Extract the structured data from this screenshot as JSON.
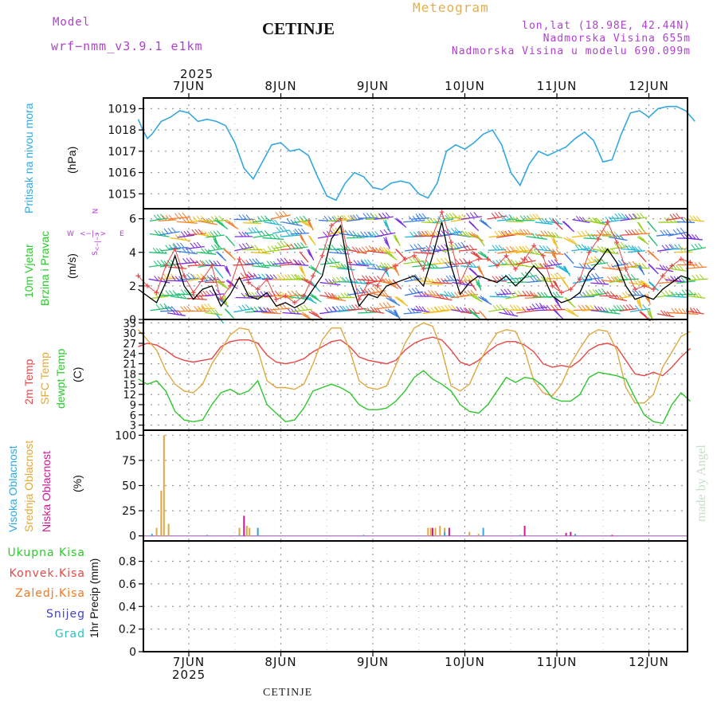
{
  "header": {
    "model_label": "Model",
    "model_name": "wrf−nmm_v3.9.1  e1km",
    "station": "CETINJE",
    "product": "Meteogram",
    "coords": "lon,lat (18.98E, 42.44N)",
    "elevation": "Nadmorska Visina 655m",
    "model_elevation": "Nadmorska Visina u modelu 690.099m",
    "footer_station": "CETINJE",
    "watermark": "made by Angel"
  },
  "colors": {
    "pressure": "#33a8e0",
    "temp2m": "#e54848",
    "sfc_temp": "#e0a840",
    "dewpt": "#2ec82e",
    "wind_speed": "#000000",
    "gust": "#e54848",
    "high_cloud": "#33a8e0",
    "mid_cloud": "#e0a840",
    "low_cloud": "#d01890",
    "total_precip": "#2ec82e",
    "convective": "#e54848",
    "freezing": "#f07820",
    "snow": "#4040d0",
    "hail": "#30c0c0",
    "header_purple": "#b040d0",
    "header_orange": "#e0b050"
  },
  "x_axis": {
    "year": "2025",
    "days": [
      "7JUN",
      "8JUN",
      "9JUN",
      "10JUN",
      "11JUN",
      "12JUN"
    ]
  },
  "panels": {
    "pressure": {
      "label": "Pritisak na nivou mora",
      "unit": "(hPa)",
      "ticks": [
        "1015",
        "1016",
        "1017",
        "1018",
        "1019"
      ]
    },
    "wind": {
      "label1": "10m Vjetar",
      "label2": "Brzina i Pravac",
      "unit": "(m/s)",
      "ticks": [
        "0",
        "2",
        "4",
        "6"
      ],
      "compass_n": "N",
      "compass_s": "S",
      "compass_w": "W",
      "compass_e": "E",
      "compass_arrows": "<−|−>"
    },
    "temp": {
      "label1": "2m Temp",
      "label2": "SFC Temp",
      "label3": "dewpt Temp",
      "unit": "(C)",
      "ticks": [
        "3",
        "6",
        "9",
        "12",
        "15",
        "18",
        "21",
        "24",
        "27",
        "30",
        "33"
      ]
    },
    "cloud": {
      "label1": "Visoka Oblacnost",
      "label2": "Srednja Oblacnost",
      "label3": "Niska Oblacnost",
      "unit": "(%)",
      "ticks": [
        "0",
        "25",
        "50",
        "75",
        "100"
      ]
    },
    "precip": {
      "legend": [
        "Ukupna Kisa",
        "Konvek.Kisa",
        "Zaledj.Kisa",
        "Snijeg",
        "Grad"
      ],
      "unit": "1hr Precip (mm)",
      "ticks": [
        "0",
        "0.2",
        "0.4",
        "0.6",
        "0.8"
      ]
    }
  },
  "chart_data": [
    {
      "type": "line",
      "name_key": "pressure",
      "ylabel": "Pritisak na nivou mora (hPa)",
      "ylim": [
        1014.3,
        1019.5
      ],
      "x": [
        6.45,
        6.5,
        6.55,
        6.6,
        6.7,
        6.8,
        6.9,
        7,
        7.1,
        7.2,
        7.3,
        7.4,
        7.5,
        7.6,
        7.7,
        7.8,
        7.9,
        8,
        8.1,
        8.2,
        8.3,
        8.4,
        8.5,
        8.6,
        8.7,
        8.8,
        8.9,
        9,
        9.1,
        9.2,
        9.3,
        9.4,
        9.5,
        9.6,
        9.7,
        9.8,
        9.9,
        10,
        10.1,
        10.2,
        10.3,
        10.4,
        10.5,
        10.6,
        10.7,
        10.8,
        10.9,
        11,
        11.1,
        11.2,
        11.3,
        11.4,
        11.5,
        11.6,
        11.7,
        11.8,
        11.9,
        12,
        12.1,
        12.2,
        12.3,
        12.4,
        12.5
      ],
      "series": [
        {
          "values": [
            1018.5,
            1018,
            1017.6,
            1017.8,
            1018.4,
            1018.6,
            1018.9,
            1018.8,
            1018.4,
            1018.5,
            1018.4,
            1018.2,
            1017.4,
            1016.2,
            1015.7,
            1016.5,
            1017.3,
            1017.4,
            1017.0,
            1017.1,
            1016.8,
            1015.8,
            1014.9,
            1014.7,
            1015.5,
            1016.0,
            1015.8,
            1015.3,
            1015.2,
            1015.5,
            1015.6,
            1015.5,
            1015.0,
            1014.8,
            1015.5,
            1017.0,
            1017.3,
            1017.1,
            1017.4,
            1017.8,
            1018.0,
            1017.3,
            1016.0,
            1015.4,
            1016.4,
            1017.0,
            1016.8,
            1017.0,
            1017.2,
            1017.6,
            1017.9,
            1017.5,
            1016.5,
            1016.6,
            1017.8,
            1018.8,
            1018.9,
            1018.6,
            1019.0,
            1019.1,
            1019.1,
            1018.9,
            1018.4
          ]
        }
      ]
    },
    {
      "type": "line",
      "name_key": "wind",
      "ylabel": "10m Vjetar Brzina i Pravac (m/s)",
      "ylim": [
        0,
        6.6
      ],
      "x": [
        6.45,
        6.55,
        6.65,
        6.75,
        6.85,
        6.95,
        7.05,
        7.15,
        7.25,
        7.35,
        7.45,
        7.55,
        7.65,
        7.75,
        7.85,
        7.95,
        8.05,
        8.15,
        8.25,
        8.35,
        8.45,
        8.55,
        8.65,
        8.75,
        8.85,
        8.95,
        9.05,
        9.15,
        9.25,
        9.35,
        9.45,
        9.55,
        9.65,
        9.75,
        9.85,
        9.95,
        10.05,
        10.15,
        10.25,
        10.35,
        10.45,
        10.55,
        10.65,
        10.75,
        10.85,
        10.95,
        11.05,
        11.15,
        11.25,
        11.35,
        11.45,
        11.55,
        11.65,
        11.75,
        11.85,
        11.95,
        12.05,
        12.15,
        12.25,
        12.35,
        12.45
      ],
      "series": [
        {
          "values": [
            1.8,
            1.4,
            1.0,
            2.2,
            3.8,
            2.0,
            1.2,
            1.8,
            2.0,
            0.8,
            1.5,
            2.5,
            1.4,
            1.2,
            1.6,
            0.8,
            1.0,
            0.7,
            1.0,
            1.8,
            2.6,
            4.8,
            5.6,
            2.5,
            0.8,
            1.5,
            1.3,
            2.0,
            2.2,
            2.4,
            2.6,
            2.0,
            3.8,
            5.8,
            3.2,
            1.5,
            2.2,
            2.6,
            2.4,
            2.2,
            2.6,
            2.0,
            2.5,
            3.2,
            2.6,
            1.4,
            1.0,
            1.2,
            1.6,
            2.8,
            3.4,
            4.2,
            3.4,
            2.0,
            1.2,
            1.4,
            1.2,
            1.8,
            2.2,
            2.6,
            2.4
          ]
        },
        {
          "values": [
            2.6,
            2.0,
            1.6,
            3.2,
            4.2,
            2.6,
            1.6,
            2.4,
            3.2,
            1.2,
            2.0,
            3.6,
            2.2,
            1.8,
            2.4,
            1.2,
            1.4,
            1.0,
            1.4,
            2.6,
            3.8,
            5.6,
            6.0,
            3.4,
            1.2,
            2.2,
            2.0,
            3.0,
            3.2,
            3.6,
            3.8,
            3.0,
            5.0,
            6.4,
            4.6,
            2.2,
            3.4,
            3.6,
            3.6,
            3.2,
            3.8,
            3.0,
            3.6,
            4.4,
            3.8,
            2.0,
            1.6,
            1.8,
            2.4,
            4.0,
            4.8,
            5.8,
            4.6,
            3.0,
            1.8,
            2.0,
            1.8,
            2.6,
            3.2,
            3.6,
            3.4
          ]
        }
      ]
    },
    {
      "type": "line",
      "name_key": "temp",
      "ylabel": "Temp (C)",
      "ylim": [
        1.5,
        34
      ],
      "x": [
        6.45,
        6.55,
        6.65,
        6.75,
        6.85,
        6.95,
        7.05,
        7.15,
        7.25,
        7.35,
        7.45,
        7.55,
        7.65,
        7.75,
        7.85,
        7.95,
        8.05,
        8.15,
        8.25,
        8.35,
        8.45,
        8.55,
        8.65,
        8.75,
        8.85,
        8.95,
        9.05,
        9.15,
        9.25,
        9.35,
        9.45,
        9.55,
        9.65,
        9.75,
        9.85,
        9.95,
        10.05,
        10.15,
        10.25,
        10.35,
        10.45,
        10.55,
        10.65,
        10.75,
        10.85,
        10.95,
        11.05,
        11.15,
        11.25,
        11.35,
        11.45,
        11.55,
        11.65,
        11.75,
        11.85,
        11.95,
        12.05,
        12.15,
        12.25,
        12.35,
        12.45
      ],
      "series": [
        {
          "values": [
            26,
            27,
            26.5,
            25,
            23,
            22,
            21.5,
            22,
            22.5,
            26,
            27.5,
            28,
            28,
            27,
            23.5,
            21.5,
            21,
            21.5,
            22.5,
            24.5,
            26,
            27.5,
            28,
            26,
            23,
            22,
            21.5,
            21,
            22,
            25,
            27,
            28.2,
            28.8,
            28,
            25,
            21.5,
            20.5,
            22,
            24.5,
            26.5,
            27.5,
            27.5,
            26.5,
            24.5,
            21,
            20,
            20.5,
            20,
            22,
            25,
            26.5,
            27,
            26,
            22,
            18,
            17.5,
            18.5,
            17.5,
            20,
            23,
            25.5
          ]
        },
        {
          "values": [
            31,
            28,
            25,
            19,
            15,
            13,
            12.5,
            15,
            21,
            25,
            29.5,
            31.5,
            31,
            25,
            16,
            14,
            14,
            13.5,
            15,
            21,
            28,
            31.5,
            31.5,
            25,
            16,
            14,
            13.5,
            14.5,
            20.5,
            27,
            31.5,
            33,
            32,
            25,
            14.5,
            13,
            15,
            21,
            26,
            30,
            31,
            30.5,
            25,
            16,
            12.5,
            11.5,
            15,
            21,
            25.5,
            29.5,
            31,
            30.5,
            25,
            14,
            9.5,
            9.5,
            12,
            20,
            24.5,
            29,
            30.5
          ]
        },
        {
          "values": [
            16.5,
            15,
            16,
            13,
            7,
            4.5,
            4,
            4.5,
            9,
            12.5,
            13.5,
            12,
            13,
            16,
            9,
            6.5,
            4,
            4.5,
            8,
            13,
            14,
            15,
            14,
            12.5,
            9,
            7.5,
            7.5,
            8,
            10,
            13,
            17,
            19,
            16.5,
            15,
            13,
            9,
            7,
            6.5,
            9,
            13,
            17,
            15.5,
            17,
            16.5,
            14.5,
            11,
            10,
            10,
            12,
            17,
            18.5,
            18,
            17.5,
            16.5,
            11,
            6,
            4,
            3.5,
            9,
            12.5,
            10
          ]
        }
      ]
    },
    {
      "type": "bar",
      "name_key": "cloud",
      "ylabel": "Oblacnost (%)",
      "ylim": [
        -5,
        105
      ],
      "series": [
        {
          "key": "mid",
          "points": [
            [
              6.65,
              8
            ],
            [
              6.7,
              45
            ],
            [
              6.73,
              100
            ],
            [
              6.78,
              12
            ],
            [
              7.55,
              8
            ],
            [
              7.63,
              10
            ],
            [
              7.66,
              8
            ],
            [
              7.75,
              8
            ],
            [
              9.6,
              8
            ],
            [
              9.63,
              8
            ],
            [
              9.68,
              8
            ],
            [
              9.73,
              10
            ],
            [
              9.78,
              8
            ],
            [
              10.05,
              4
            ],
            [
              10.15,
              2
            ]
          ]
        },
        {
          "key": "high",
          "points": [
            [
              6.6,
              2
            ],
            [
              7.2,
              1
            ],
            [
              7.55,
              1
            ],
            [
              7.75,
              8
            ],
            [
              8.9,
              1
            ],
            [
              9.65,
              4
            ],
            [
              9.78,
              4
            ],
            [
              10.2,
              8
            ],
            [
              10.6,
              1
            ],
            [
              11.2,
              2
            ]
          ]
        },
        {
          "key": "low",
          "points": [
            [
              7.6,
              20
            ],
            [
              9.65,
              8
            ],
            [
              9.83,
              8
            ],
            [
              10.65,
              10
            ],
            [
              11.1,
              3
            ],
            [
              11.15,
              4
            ],
            [
              11.6,
              1
            ]
          ]
        }
      ]
    },
    {
      "type": "bar",
      "name_key": "precip",
      "ylabel": "1hr Precip (mm)",
      "ylim": [
        0,
        0.98
      ],
      "series": [
        {
          "key": "total",
          "points": []
        }
      ]
    }
  ]
}
